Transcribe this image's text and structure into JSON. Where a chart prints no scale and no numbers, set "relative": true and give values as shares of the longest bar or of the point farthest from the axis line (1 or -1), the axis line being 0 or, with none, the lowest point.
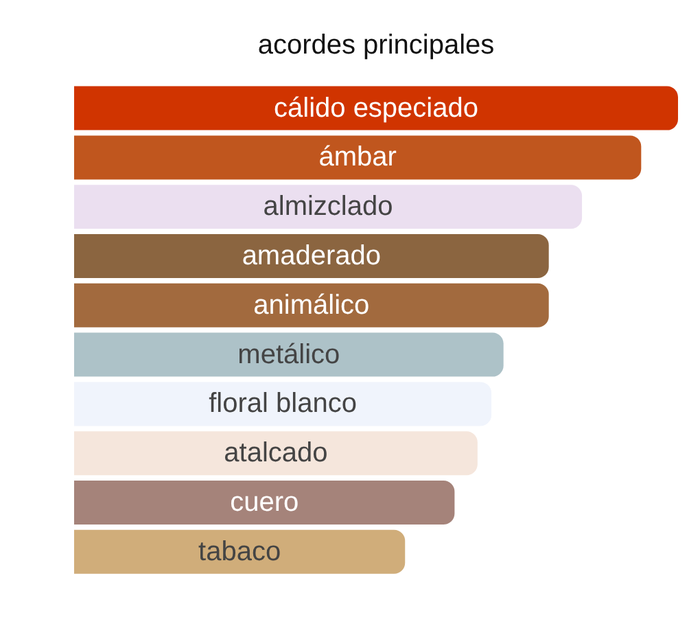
{
  "chart_data": {
    "type": "bar",
    "orientation": "horizontal",
    "relative": true,
    "title": "acordes principales",
    "categories": [
      "cálido especiado",
      "ámbar",
      "almizclado",
      "amaderado",
      "animálico",
      "metálico",
      "floral blanco",
      "atalcado",
      "cuero",
      "tabaco"
    ],
    "values": [
      1,
      0.939,
      0.841,
      0.786,
      0.786,
      0.711,
      0.691,
      0.668,
      0.63,
      0.548
    ],
    "colors": [
      "#d03400",
      "#c0561e",
      "#ebdff0",
      "#8b6540",
      "#a26a3e",
      "#adc2c8",
      "#f0f4fc",
      "#f5e6dc",
      "#a5837a",
      "#d0ad7a"
    ]
  }
}
